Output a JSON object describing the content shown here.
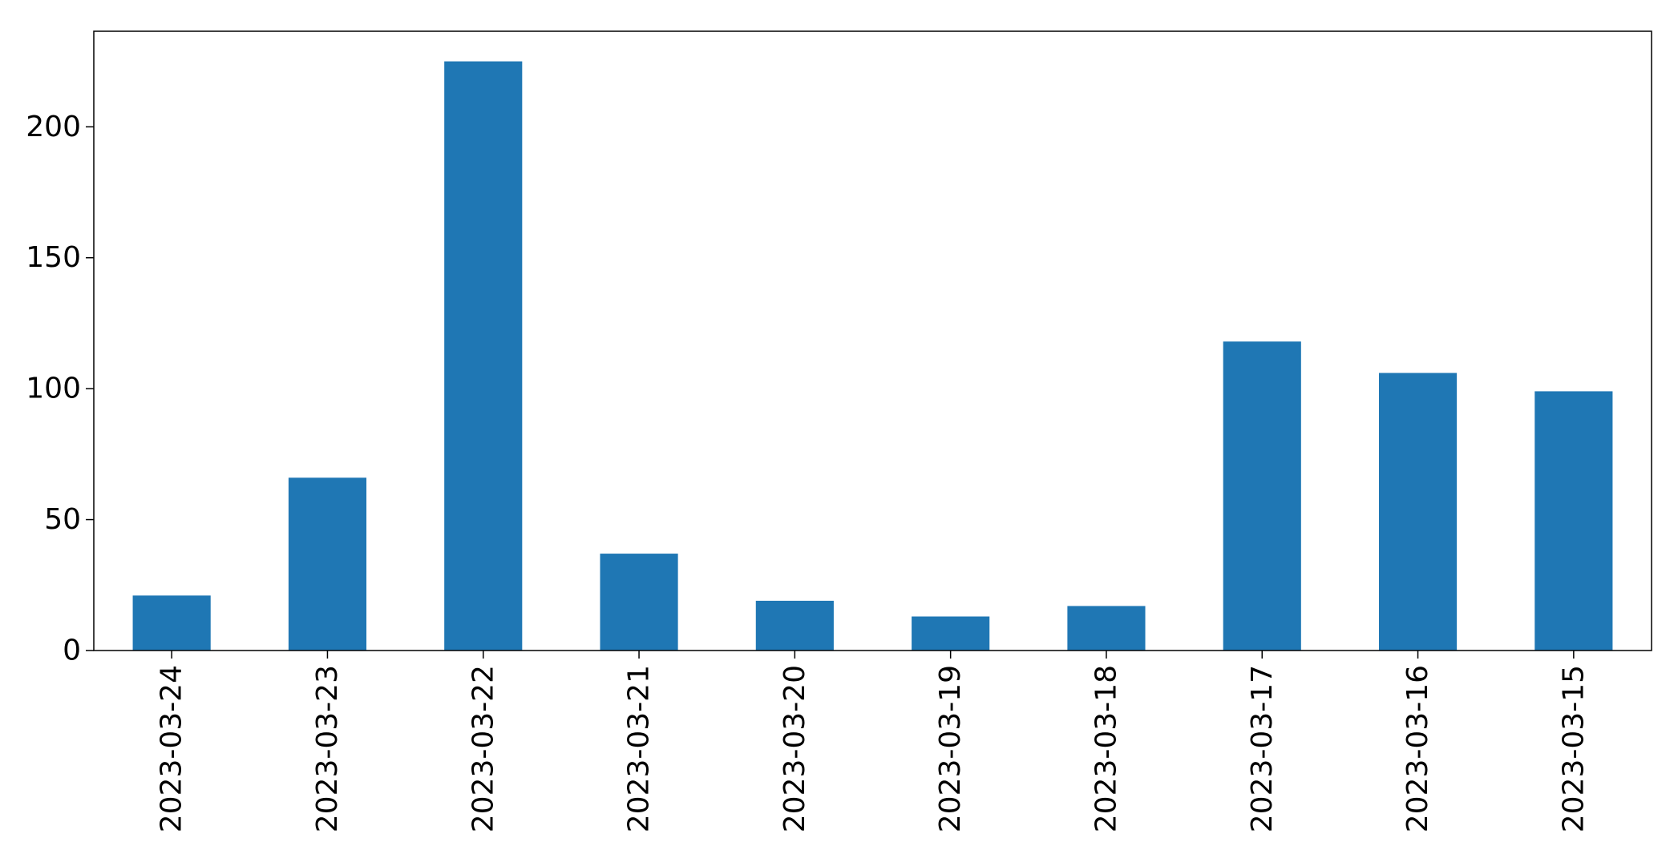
{
  "chart_data": {
    "type": "bar",
    "title": "",
    "xlabel": "",
    "ylabel": "",
    "categories": [
      "2023-03-24",
      "2023-03-23",
      "2023-03-22",
      "2023-03-21",
      "2023-03-20",
      "2023-03-19",
      "2023-03-18",
      "2023-03-17",
      "2023-03-16",
      "2023-03-15"
    ],
    "values": [
      21,
      66,
      225,
      37,
      19,
      13,
      17,
      118,
      106,
      99
    ],
    "ylim": [
      0,
      236.5
    ],
    "yticks": [
      0,
      50,
      100,
      150,
      200
    ],
    "bar_color": "#1f77b4",
    "grid": false,
    "legend": "none"
  }
}
